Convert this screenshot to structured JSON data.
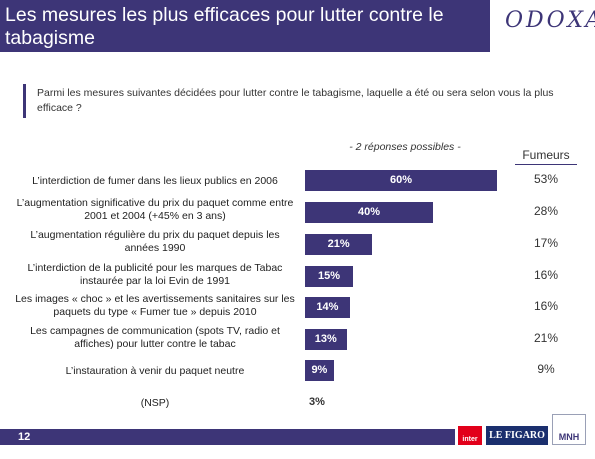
{
  "header": {
    "title": "Les mesures les plus efficaces pour lutter contre le tabagisme",
    "logo_text": "ODOXA"
  },
  "question": "Parmi les mesures suivantes décidées pour lutter contre le tabagisme, laquelle a été ou sera selon vous la plus efficace ?",
  "note": "- 2 réponses possibles -",
  "fumeurs_header": "Fumeurs",
  "colors": {
    "brand": "#3d3577",
    "accent_red": "#e2001a",
    "figaro_blue": "#1b2f6e"
  },
  "chart_data": {
    "type": "bar",
    "orientation": "horizontal",
    "categories": [
      "L’interdiction de fumer dans les lieux publics en 2006",
      "L’augmentation significative du prix du paquet comme entre 2001 et 2004 (+45% en 3 ans)",
      "L’augmentation régulière du prix du paquet depuis les années 1990",
      "L’interdiction de la publicité pour les marques de Tabac instaurée par la loi Evin de 1991",
      "Les images « choc » et les avertissements sanitaires sur les paquets du type « Fumer tue » depuis 2010",
      "Les campagnes de communication (spots TV, radio et affiches) pour lutter contre le tabac",
      "L’instauration à venir du paquet neutre",
      "(NSP)"
    ],
    "series": [
      {
        "values": [
          60,
          40,
          21,
          15,
          14,
          13,
          9,
          3
        ]
      },
      {
        "name": "Fumeurs",
        "values": [
          53,
          28,
          17,
          16,
          16,
          21,
          9,
          null
        ]
      }
    ],
    "value_labels": [
      "60%",
      "40%",
      "21%",
      "15%",
      "14%",
      "13%",
      "9%",
      "3%"
    ],
    "fumeurs_labels": [
      "53%",
      "28%",
      "17%",
      "16%",
      "16%",
      "21%",
      "9%",
      ""
    ],
    "xlim": [
      0,
      65
    ]
  },
  "footer": {
    "page_number": "12",
    "logos": [
      "inter",
      "LE FIGARO",
      "MNH"
    ]
  }
}
